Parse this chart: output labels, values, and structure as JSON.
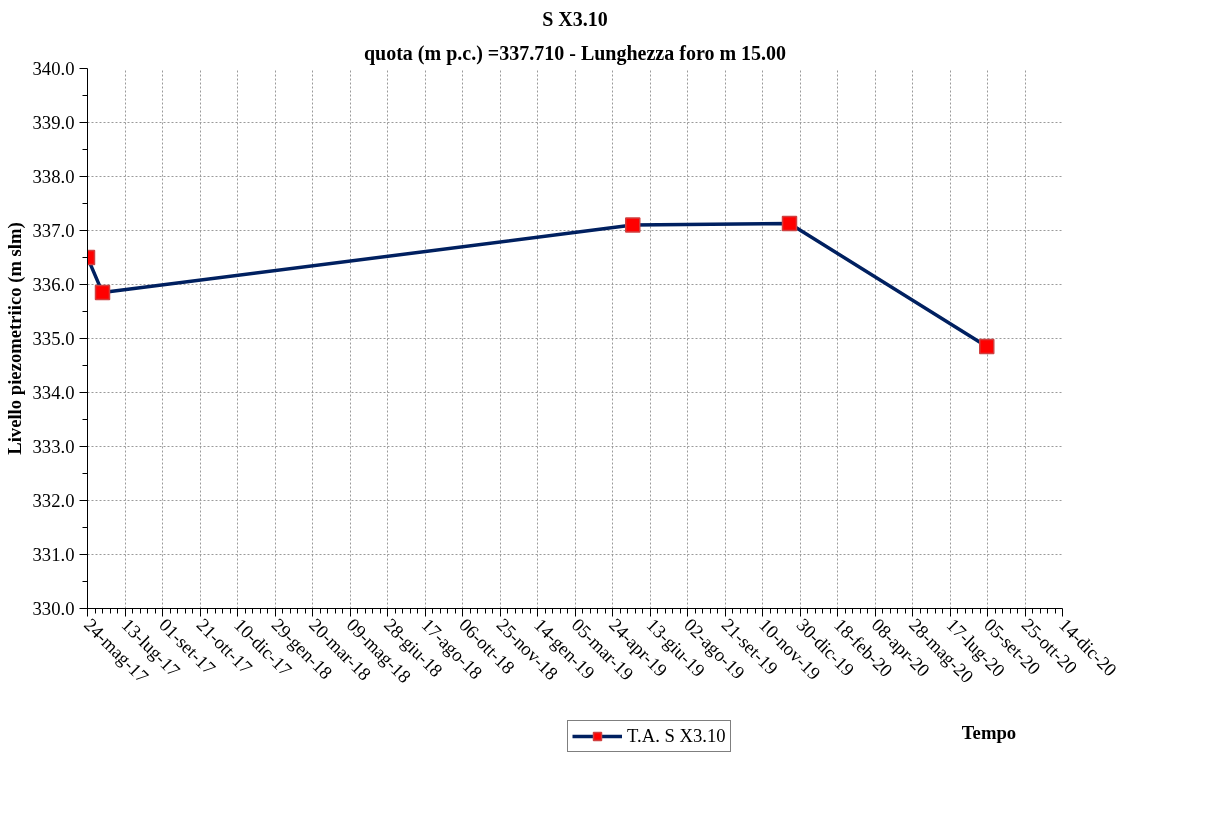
{
  "chart_data": {
    "type": "line",
    "title": "S X3.10",
    "subtitle": "quota (m p.c.) =337.710 - Lunghezza foro m 15.00",
    "xlabel": "Tempo",
    "ylabel": "Livello piezometriico (m slm)",
    "x": [
      "2017-05-24",
      "2017-06-13",
      "2019-05-21",
      "2019-12-16",
      "2020-09-04"
    ],
    "series": [
      {
        "name": "T.A. S X3.10",
        "color": "#002060",
        "values": [
          336.5,
          335.85,
          337.1,
          337.13,
          334.85
        ]
      }
    ],
    "marker": "square",
    "line_style": "solid",
    "grid": true,
    "legend": "bottom",
    "xlim": [
      "2017-05-24",
      "2020-12-14"
    ],
    "xticks": [
      {
        "value": "2017-05-24",
        "label": "24-mag-17"
      },
      {
        "value": "2017-07-13",
        "label": "13-lug-17"
      },
      {
        "value": "2017-09-01",
        "label": "01-set-17"
      },
      {
        "value": "2017-10-21",
        "label": "21-ott-17"
      },
      {
        "value": "2017-12-10",
        "label": "10-dic-17"
      },
      {
        "value": "2018-01-29",
        "label": "29-gen-18"
      },
      {
        "value": "2018-03-20",
        "label": "20-mar-18"
      },
      {
        "value": "2018-05-09",
        "label": "09-mag-18"
      },
      {
        "value": "2018-06-28",
        "label": "28-giu-18"
      },
      {
        "value": "2018-08-17",
        "label": "17-ago-18"
      },
      {
        "value": "2018-10-06",
        "label": "06-ott-18"
      },
      {
        "value": "2018-11-25",
        "label": "25-nov-18"
      },
      {
        "value": "2019-01-14",
        "label": "14-gen-19"
      },
      {
        "value": "2019-03-05",
        "label": "05-mar-19"
      },
      {
        "value": "2019-04-24",
        "label": "24-apr-19"
      },
      {
        "value": "2019-06-13",
        "label": "13-giu-19"
      },
      {
        "value": "2019-08-02",
        "label": "02-ago-19"
      },
      {
        "value": "2019-09-21",
        "label": "21-set-19"
      },
      {
        "value": "2019-11-10",
        "label": "10-nov-19"
      },
      {
        "value": "2019-12-30",
        "label": "30-dic-19"
      },
      {
        "value": "2020-02-18",
        "label": "18-feb-20"
      },
      {
        "value": "2020-04-08",
        "label": "08-apr-20"
      },
      {
        "value": "2020-05-28",
        "label": "28-mag-20"
      },
      {
        "value": "2020-07-17",
        "label": "17-lug-20"
      },
      {
        "value": "2020-09-05",
        "label": "05-set-20"
      },
      {
        "value": "2020-10-25",
        "label": "25-ott-20"
      },
      {
        "value": "2020-12-14",
        "label": "14-dic-20"
      }
    ],
    "ylim": [
      330,
      340
    ],
    "yticks": [
      {
        "value": 330,
        "label": "330.0"
      },
      {
        "value": 331,
        "label": "331.0"
      },
      {
        "value": 332,
        "label": "332.0"
      },
      {
        "value": 333,
        "label": "333.0"
      },
      {
        "value": 334,
        "label": "334.0"
      },
      {
        "value": 335,
        "label": "335.0"
      },
      {
        "value": 336,
        "label": "336.0"
      },
      {
        "value": 337,
        "label": "337.0"
      },
      {
        "value": 338,
        "label": "338.0"
      },
      {
        "value": 339,
        "label": "339.0"
      },
      {
        "value": 340,
        "label": "340.0"
      }
    ]
  }
}
